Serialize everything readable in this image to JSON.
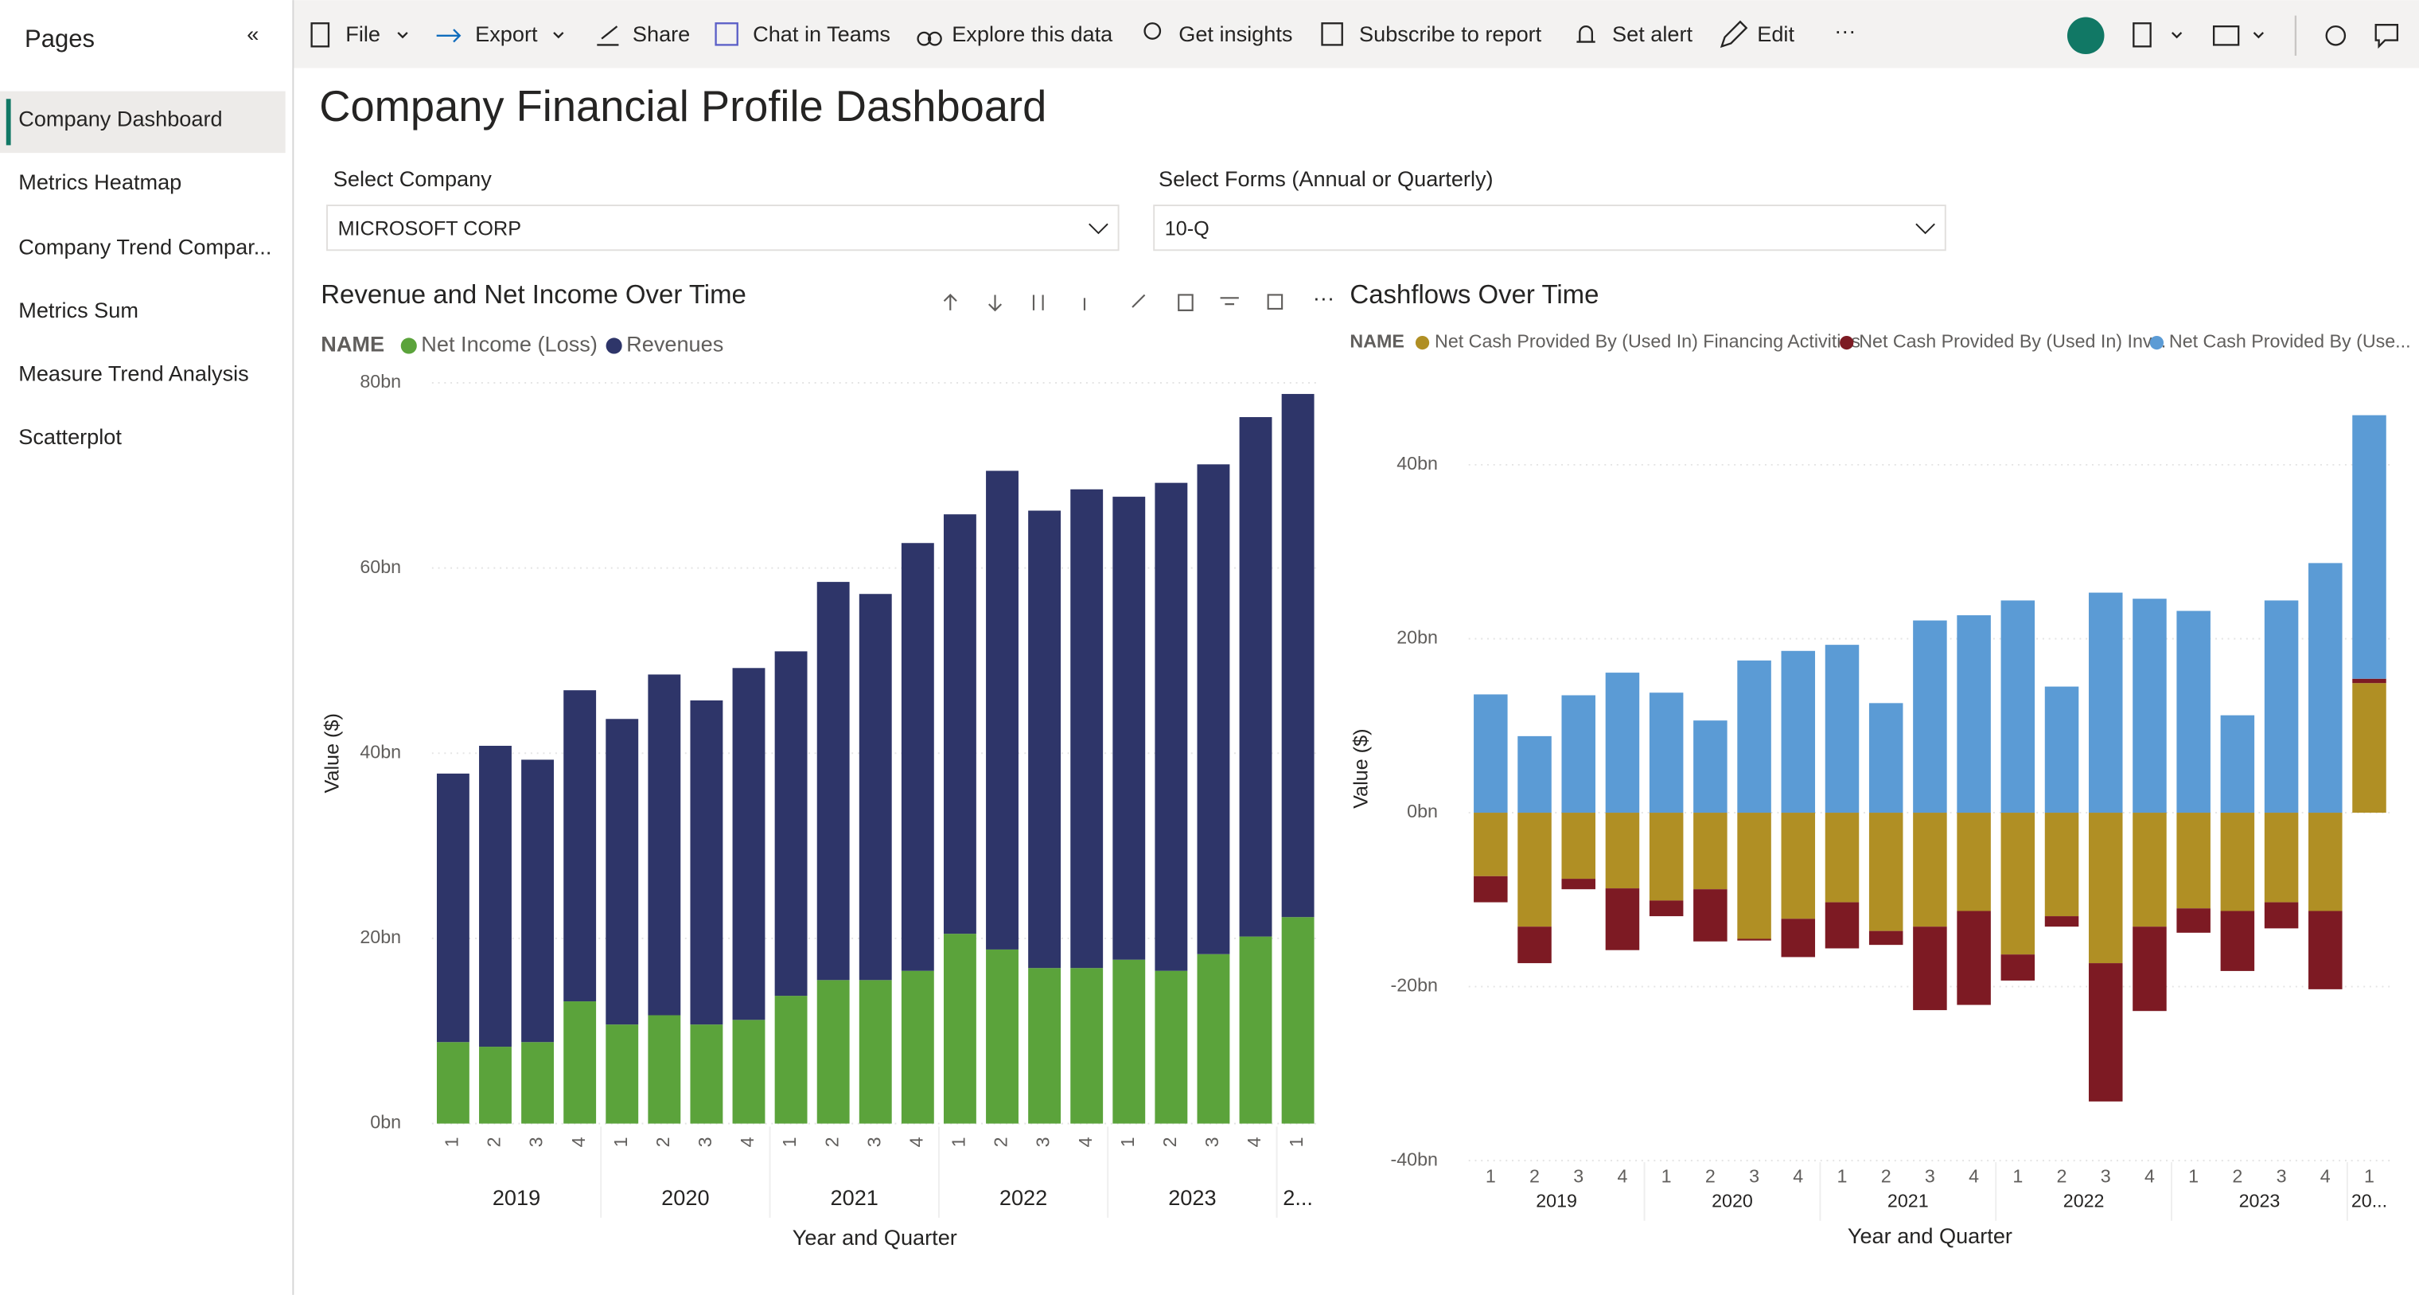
{
  "sidebar": {
    "title": "Pages",
    "items": [
      "Company Dashboard",
      "Metrics Heatmap",
      "Company Trend Compar...",
      "Metrics Sum",
      "Measure Trend Analysis",
      "Scatterplot"
    ]
  },
  "toolbar": [
    "File",
    "Export",
    "Share",
    "Chat in Teams",
    "Explore this data",
    "Get insights",
    "Subscribe to report",
    "Set alert",
    "Edit"
  ],
  "title": "Company Financial Profile Dashboard",
  "filters": [
    {
      "label": "Select Company",
      "value": "MICROSOFT CORP"
    },
    {
      "label": "Select Forms (Annual or Quarterly)",
      "value": "10-Q"
    }
  ],
  "chart_data": [
    {
      "type": "stacked-bar",
      "title": "Revenue and Net Income Over Time",
      "legend_title": "NAME",
      "y_label": "Value ($)",
      "x_label": "Year and Quarter",
      "categories": [
        "1",
        "2",
        "3",
        "4",
        "1",
        "2",
        "3",
        "4",
        "1",
        "2",
        "3",
        "4",
        "1",
        "2",
        "3",
        "4",
        "1",
        "2",
        "3",
        "4",
        "1"
      ],
      "year_labels": [
        "2019",
        "2020",
        "2021",
        "2022",
        "2023",
        "2..."
      ],
      "series": [
        {
          "name": "Net Income (Loss)",
          "color": "#5ba33b",
          "values": [
            8.8,
            8.3,
            8.8,
            13.2,
            10.7,
            11.7,
            10.7,
            11.2,
            13.8,
            15.5,
            15.5,
            16.5,
            20.5,
            18.8,
            16.8,
            16.8,
            17.7,
            16.5,
            18.3,
            20.2,
            22.3
          ]
        },
        {
          "name": "Revenues",
          "color": "#2e3569",
          "values": [
            29.0,
            32.5,
            30.5,
            33.6,
            33.0,
            36.8,
            35.0,
            38.0,
            37.2,
            43.0,
            41.7,
            46.2,
            45.3,
            51.7,
            49.4,
            51.7,
            50.0,
            52.7,
            52.9,
            56.1,
            56.5
          ]
        }
      ],
      "ylim": [
        0,
        80
      ],
      "yticks": [
        {
          "value": 0,
          "label": "0bn"
        },
        {
          "value": 20,
          "label": "20bn"
        },
        {
          "value": 40,
          "label": "40bn"
        },
        {
          "value": 60,
          "label": "60bn"
        },
        {
          "value": 80,
          "label": "80bn"
        }
      ],
      "grid": true
    },
    {
      "type": "stacked-bar",
      "title": "Cashflows Over Time",
      "legend_title": "NAME",
      "y_label": "Value ($)",
      "x_label": "Year and Quarter",
      "categories": [
        "1",
        "2",
        "3",
        "4",
        "1",
        "2",
        "3",
        "4",
        "1",
        "2",
        "3",
        "4",
        "1",
        "2",
        "3",
        "4",
        "1",
        "2",
        "3",
        "4",
        "1"
      ],
      "year_labels": [
        "2019",
        "2020",
        "2021",
        "2022",
        "2023",
        "20..."
      ],
      "series": [
        {
          "name": "Net Cash Provided By (Used In) Financing Activities",
          "color": "#b08f24",
          "values": [
            -7.3,
            -13.1,
            -7.6,
            -8.7,
            -10.1,
            -8.8,
            -14.5,
            -12.2,
            -10.3,
            -13.6,
            -13.1,
            -11.3,
            -16.3,
            -11.9,
            -17.3,
            -13.1,
            -11.0,
            -11.3,
            -10.3,
            -11.3,
            14.9
          ]
        },
        {
          "name": "Net Cash Provided By (Used In) Inv...",
          "color": "#7d1a23",
          "values": [
            -3.0,
            -4.2,
            -1.2,
            -7.1,
            -1.8,
            -6.0,
            -0.2,
            -4.4,
            -5.3,
            -1.6,
            -9.6,
            -10.8,
            -3.0,
            -1.2,
            -15.9,
            -9.7,
            -2.8,
            -6.9,
            -3.0,
            -9.0,
            0.5
          ]
        },
        {
          "name": "Net Cash Provided By (Use...",
          "color": "#5b9bd5",
          "values": [
            13.6,
            8.8,
            13.5,
            16.1,
            13.8,
            10.6,
            17.5,
            18.6,
            19.3,
            12.6,
            22.1,
            22.7,
            24.4,
            14.5,
            25.3,
            24.6,
            23.2,
            11.2,
            24.4,
            28.7,
            30.3
          ]
        }
      ],
      "ylim": [
        -40,
        48
      ],
      "yticks": [
        {
          "value": -40,
          "label": "-40bn"
        },
        {
          "value": -20,
          "label": "-20bn"
        },
        {
          "value": 0,
          "label": "0bn"
        },
        {
          "value": 20,
          "label": "20bn"
        },
        {
          "value": 40,
          "label": "40bn"
        }
      ],
      "grid": true
    }
  ]
}
